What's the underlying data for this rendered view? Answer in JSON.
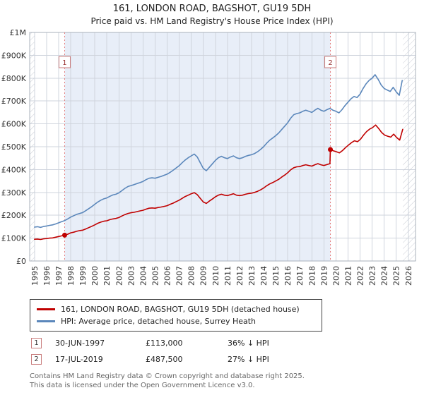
{
  "header": {
    "title": "161, LONDON ROAD, BAGSHOT, GU19 5DH",
    "subtitle": "Price paid vs. HM Land Registry's House Price Index (HPI)"
  },
  "chart_data": {
    "type": "line",
    "x_min": 1994.6,
    "x_max": 2026.6,
    "ylim": [
      0,
      1000000
    ],
    "unit": 1000,
    "data_start": 1995.0,
    "data_end": 2025.55,
    "shade_color": "#e8eef8",
    "y_ticks": [
      "£0",
      "£100K",
      "£200K",
      "£300K",
      "£400K",
      "£500K",
      "£600K",
      "£700K",
      "£800K",
      "£900K",
      "£1M"
    ],
    "x_ticks": [
      1995,
      1996,
      1997,
      1998,
      1999,
      2000,
      2001,
      2002,
      2003,
      2004,
      2005,
      2006,
      2007,
      2008,
      2009,
      2010,
      2011,
      2012,
      2013,
      2014,
      2015,
      2016,
      2017,
      2018,
      2019,
      2020,
      2021,
      2022,
      2023,
      2024,
      2025,
      2026
    ],
    "series": [
      {
        "name": "161, LONDON ROAD, BAGSHOT, GU19 5DH (detached house)",
        "color": "#c00000",
        "segments": [
          {
            "x_start": 1995.0,
            "x_step": 0.25,
            "values": [
              95,
              96,
              94,
              97,
              98,
              100,
              101,
              104,
              107,
              110,
              113,
              117,
              123,
              126,
              130,
              133,
              135,
              140,
              146,
              152,
              158,
              165,
              170,
              174,
              176,
              181,
              184,
              186,
              190,
              197,
              203,
              208,
              211,
              213,
              216,
              219,
              222,
              227,
              231,
              232,
              231,
              234,
              236,
              239,
              242,
              248,
              253,
              260,
              266,
              274,
              282,
              288,
              294,
              299,
              290,
              274,
              258,
              252,
              262,
              271,
              281,
              288,
              292,
              288,
              286,
              290,
              294,
              288,
              286,
              288,
              292,
              295,
              297,
              300,
              305,
              311,
              319,
              329,
              337,
              343,
              350,
              357,
              367,
              376,
              386,
              399,
              408,
              412,
              413,
              418,
              421,
              418,
              415,
              421,
              426,
              421,
              418,
              422,
              426
            ]
          },
          {
            "x_start": 2019.54,
            "x_step": 0.25,
            "values": [
              487.5,
              482,
              478,
              473,
              483,
              496,
              507,
              518,
              526,
              522,
              533,
              551,
              566,
              577,
              584,
              595,
              580,
              562,
              551,
              546,
              542,
              555,
              540,
              529,
              576
            ]
          }
        ]
      },
      {
        "name": "HPI: Average price, detached house, Surrey Heath",
        "color": "#5b87bb",
        "segments": [
          {
            "x_start": 1995.0,
            "x_step": 0.25,
            "values": [
              148,
              150,
              147,
              151,
              153,
              156,
              158,
              162,
              167,
              172,
              177,
              184,
              192,
              198,
              204,
              208,
              212,
              220,
              229,
              238,
              248,
              258,
              266,
              272,
              276,
              283,
              289,
              292,
              298,
              308,
              318,
              326,
              330,
              334,
              339,
              343,
              348,
              356,
              362,
              364,
              362,
              366,
              370,
              375,
              380,
              388,
              397,
              407,
              417,
              430,
              442,
              452,
              460,
              468,
              455,
              430,
              405,
              395,
              410,
              425,
              440,
              452,
              458,
              452,
              448,
              455,
              460,
              452,
              448,
              452,
              458,
              462,
              465,
              470,
              478,
              488,
              500,
              515,
              528,
              538,
              548,
              560,
              575,
              590,
              605,
              625,
              640,
              645,
              648,
              655,
              660,
              655,
              650,
              660,
              668,
              660,
              655,
              662,
              668,
              660,
              655,
              648,
              662,
              680,
              695,
              710,
              720,
              715,
              730,
              755,
              775,
              790,
              800,
              815,
              795,
              770,
              755,
              748,
              742,
              760,
              740,
              725,
              790
            ]
          }
        ]
      }
    ],
    "markers": [
      {
        "label": "1",
        "x": 1997.5,
        "y": 113000
      },
      {
        "label": "2",
        "x": 2019.54,
        "y": 487500
      }
    ]
  },
  "legend": {
    "items": [
      {
        "label": "161, LONDON ROAD, BAGSHOT, GU19 5DH (detached house)"
      },
      {
        "label": "HPI: Average price, detached house, Surrey Heath"
      }
    ]
  },
  "annotations": [
    {
      "num": "1",
      "date": "30-JUN-1997",
      "price": "£113,000",
      "vs_hpi": "36% ↓ HPI"
    },
    {
      "num": "2",
      "date": "17-JUL-2019",
      "price": "£487,500",
      "vs_hpi": "27% ↓ HPI"
    }
  ],
  "footer": {
    "line1": "Contains HM Land Registry data © Crown copyright and database right 2025.",
    "line2": "This data is licensed under the Open Government Licence v3.0."
  }
}
